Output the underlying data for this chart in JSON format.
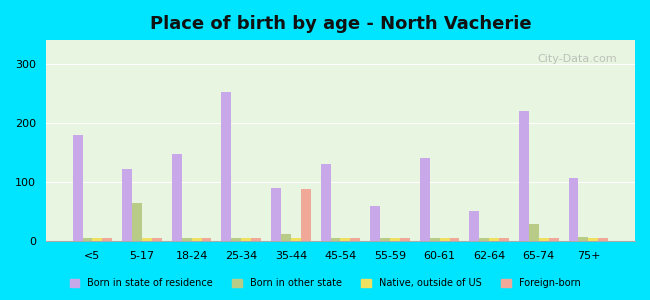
{
  "title": "Place of birth by age - North Vacherie",
  "categories": [
    "<5",
    "5-17",
    "18-24",
    "25-34",
    "35-44",
    "45-54",
    "55-59",
    "60-61",
    "62-64",
    "65-74",
    "75+"
  ],
  "series": {
    "Born in state of residence": [
      180,
      122,
      147,
      252,
      90,
      130,
      60,
      140,
      52,
      220,
      107
    ],
    "Born in other state": [
      5,
      65,
      5,
      5,
      12,
      5,
      5,
      5,
      5,
      30,
      7
    ],
    "Native, outside of US": [
      5,
      5,
      5,
      5,
      5,
      5,
      5,
      5,
      5,
      5,
      5
    ],
    "Foreign-born": [
      5,
      5,
      5,
      5,
      88,
      5,
      5,
      5,
      5,
      5,
      5
    ]
  },
  "colors": {
    "Born in state of residence": "#c8a8e8",
    "Born in other state": "#b8cc88",
    "Native, outside of US": "#f0e060",
    "Foreign-born": "#f0a898"
  },
  "ylim": [
    0,
    340
  ],
  "yticks": [
    0,
    100,
    200,
    300
  ],
  "background_color": "#e8f5e0",
  "outer_background": "#00e5ff",
  "bar_width": 0.2,
  "watermark": "City-Data.com"
}
